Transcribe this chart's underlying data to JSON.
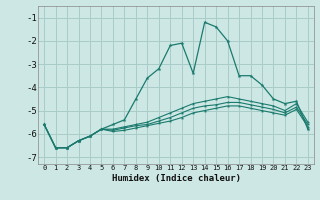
{
  "xlabel": "Humidex (Indice chaleur)",
  "xlim": [
    -0.5,
    23.5
  ],
  "ylim": [
    -7.3,
    -0.5
  ],
  "yticks": [
    -7,
    -6,
    -5,
    -4,
    -3,
    -2,
    -1
  ],
  "xticks": [
    0,
    1,
    2,
    3,
    4,
    5,
    6,
    7,
    8,
    9,
    10,
    11,
    12,
    13,
    14,
    15,
    16,
    17,
    18,
    19,
    20,
    21,
    22,
    23
  ],
  "background_color": "#cde8e4",
  "grid_color": "#a8ccc8",
  "line_color": "#1a7a6e",
  "x": [
    0,
    1,
    2,
    3,
    4,
    5,
    6,
    7,
    8,
    9,
    10,
    11,
    12,
    13,
    14,
    15,
    16,
    17,
    18,
    19,
    20,
    21,
    22,
    23
  ],
  "line_main": [
    -5.6,
    -6.6,
    -6.6,
    -6.3,
    -6.1,
    -5.8,
    -5.6,
    -5.4,
    -4.5,
    -3.6,
    -3.2,
    -2.2,
    -2.1,
    -3.4,
    -1.2,
    -1.4,
    -2.0,
    -3.5,
    -3.5,
    -3.9,
    -4.5,
    -4.7,
    -4.6,
    -5.8
  ],
  "line2": [
    -5.6,
    -6.6,
    -6.6,
    -6.3,
    -6.1,
    -5.8,
    -5.8,
    -5.7,
    -5.6,
    -5.5,
    -5.3,
    -5.1,
    -4.9,
    -4.7,
    -4.6,
    -4.5,
    -4.4,
    -4.5,
    -4.6,
    -4.7,
    -4.8,
    -5.0,
    -4.7,
    -5.5
  ],
  "line3": [
    -5.6,
    -6.6,
    -6.6,
    -6.3,
    -6.1,
    -5.8,
    -5.85,
    -5.75,
    -5.65,
    -5.6,
    -5.45,
    -5.3,
    -5.1,
    -4.9,
    -4.8,
    -4.75,
    -4.65,
    -4.65,
    -4.75,
    -4.85,
    -4.95,
    -5.1,
    -4.85,
    -5.6
  ],
  "line4": [
    -5.6,
    -6.6,
    -6.6,
    -6.3,
    -6.1,
    -5.8,
    -5.9,
    -5.85,
    -5.75,
    -5.65,
    -5.55,
    -5.45,
    -5.3,
    -5.1,
    -5.0,
    -4.9,
    -4.8,
    -4.8,
    -4.9,
    -5.0,
    -5.1,
    -5.2,
    -4.95,
    -5.7
  ]
}
